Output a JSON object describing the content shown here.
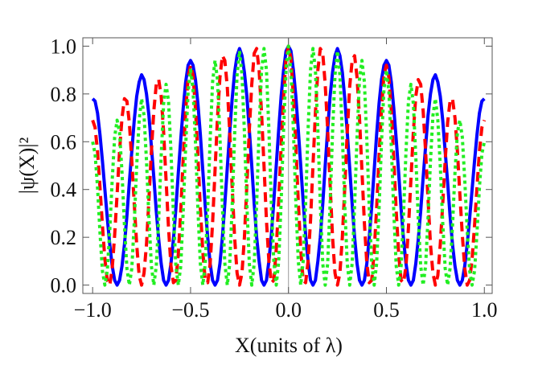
{
  "chart_data": {
    "type": "line",
    "x_label": "X(units of λ)",
    "y_label": "|ψ(X)|²",
    "xlim": [
      -1.05,
      1.04
    ],
    "ylim": [
      -0.035,
      1.035
    ],
    "xticks": [
      {
        "value": -1,
        "label": "−1.0"
      },
      {
        "value": -0.5,
        "label": "−0.5"
      },
      {
        "value": 0,
        "label": "0.0"
      },
      {
        "value": 0.5,
        "label": "0.5"
      },
      {
        "value": 1,
        "label": "1.0"
      }
    ],
    "yticks": [
      {
        "value": 0,
        "label": "0.0"
      },
      {
        "value": 0.2,
        "label": "0.2"
      },
      {
        "value": 0.4,
        "label": "0.4"
      },
      {
        "value": 0.6,
        "label": "0.6"
      },
      {
        "value": 0.8,
        "label": "0.8"
      },
      {
        "value": 1,
        "label": "1.0"
      }
    ],
    "x": [
      -1,
      -0.9875,
      -0.975,
      -0.9625,
      -0.95,
      -0.9375,
      -0.925,
      -0.9125,
      -0.9,
      -0.8875,
      -0.875,
      -0.8625,
      -0.85,
      -0.8375,
      -0.825,
      -0.8125,
      -0.8,
      -0.7875,
      -0.775,
      -0.7625,
      -0.75,
      -0.7375,
      -0.725,
      -0.7125,
      -0.7,
      -0.6875,
      -0.675,
      -0.6625,
      -0.65,
      -0.6375,
      -0.625,
      -0.6125,
      -0.6,
      -0.5875,
      -0.575,
      -0.5625,
      -0.55,
      -0.5375,
      -0.525,
      -0.5125,
      -0.5,
      -0.4875,
      -0.475,
      -0.4625,
      -0.45,
      -0.4375,
      -0.425,
      -0.4125,
      -0.4,
      -0.3875,
      -0.375,
      -0.3625,
      -0.35,
      -0.3375,
      -0.325,
      -0.3125,
      -0.3,
      -0.2875,
      -0.275,
      -0.2625,
      -0.25,
      -0.2375,
      -0.225,
      -0.2125,
      -0.2,
      -0.1875,
      -0.175,
      -0.1625,
      -0.15,
      -0.1375,
      -0.125,
      -0.1125,
      -0.1,
      -0.0875,
      -0.075,
      -0.0625,
      -0.05,
      -0.0375,
      -0.025,
      -0.0125,
      0,
      0.0125,
      0.025,
      0.0375,
      0.05,
      0.0625,
      0.075,
      0.0875,
      0.1,
      0.1125,
      0.125,
      0.1375,
      0.15,
      0.1625,
      0.175,
      0.1875,
      0.2,
      0.2125,
      0.225,
      0.2375,
      0.25,
      0.2625,
      0.275,
      0.2875,
      0.3,
      0.3125,
      0.325,
      0.3375,
      0.35,
      0.3625,
      0.375,
      0.3875,
      0.4,
      0.4125,
      0.425,
      0.4375,
      0.45,
      0.4625,
      0.475,
      0.4875,
      0.5,
      0.5125,
      0.525,
      0.5375,
      0.55,
      0.5625,
      0.575,
      0.5875,
      0.6,
      0.6125,
      0.625,
      0.6375,
      0.65,
      0.6625,
      0.675,
      0.6875,
      0.7,
      0.7125,
      0.725,
      0.7375,
      0.75,
      0.7625,
      0.775,
      0.7875,
      0.8,
      0.8125,
      0.825,
      0.8375,
      0.85,
      0.8625,
      0.875,
      0.8875,
      0.9,
      0.9125,
      0.925,
      0.9375,
      0.95,
      0.9625,
      0.975,
      0.9875,
      1
    ],
    "series": [
      {
        "color": "#0000ff",
        "style": "solid",
        "values": [
          0.78,
          0.77,
          0.72,
          0.63,
          0.52,
          0.4,
          0.28,
          0.17,
          0.08,
          0.02,
          0,
          0.02,
          0.08,
          0.17,
          0.29,
          0.43,
          0.56,
          0.69,
          0.79,
          0.85,
          0.88,
          0.86,
          0.8,
          0.71,
          0.58,
          0.45,
          0.31,
          0.19,
          0.09,
          0.02,
          0,
          0.02,
          0.09,
          0.19,
          0.32,
          0.47,
          0.61,
          0.74,
          0.85,
          0.92,
          0.94,
          0.92,
          0.86,
          0.76,
          0.63,
          0.48,
          0.33,
          0.2,
          0.09,
          0.02,
          0,
          0.02,
          0.09,
          0.2,
          0.34,
          0.49,
          0.64,
          0.78,
          0.89,
          0.96,
          0.99,
          0.96,
          0.89,
          0.79,
          0.65,
          0.5,
          0.34,
          0.2,
          0.1,
          0.02,
          0,
          0.02,
          0.1,
          0.21,
          0.35,
          0.5,
          0.65,
          0.79,
          0.9,
          0.98,
          1,
          0.98,
          0.9,
          0.79,
          0.65,
          0.5,
          0.35,
          0.21,
          0.1,
          0.02,
          0,
          0.02,
          0.1,
          0.2,
          0.34,
          0.5,
          0.65,
          0.79,
          0.89,
          0.96,
          0.99,
          0.96,
          0.89,
          0.78,
          0.64,
          0.49,
          0.34,
          0.2,
          0.09,
          0.02,
          0,
          0.02,
          0.09,
          0.2,
          0.33,
          0.48,
          0.63,
          0.76,
          0.86,
          0.92,
          0.94,
          0.92,
          0.85,
          0.74,
          0.61,
          0.47,
          0.32,
          0.19,
          0.09,
          0.02,
          0,
          0.02,
          0.09,
          0.19,
          0.31,
          0.45,
          0.58,
          0.71,
          0.8,
          0.86,
          0.88,
          0.85,
          0.79,
          0.69,
          0.56,
          0.43,
          0.29,
          0.17,
          0.08,
          0.02,
          0,
          0.02,
          0.08,
          0.17,
          0.28,
          0.4,
          0.52,
          0.63,
          0.72,
          0.77,
          0.78
        ]
      },
      {
        "color": "#ff0000",
        "style": "dashed",
        "values": [
          0.69,
          0.66,
          0.56,
          0.41,
          0.25,
          0.11,
          0.02,
          0,
          0.07,
          0.21,
          0.38,
          0.56,
          0.7,
          0.78,
          0.77,
          0.68,
          0.52,
          0.34,
          0.17,
          0.04,
          0,
          0.05,
          0.17,
          0.36,
          0.56,
          0.73,
          0.84,
          0.86,
          0.79,
          0.64,
          0.44,
          0.24,
          0.08,
          0.01,
          0.02,
          0.13,
          0.31,
          0.53,
          0.73,
          0.87,
          0.92,
          0.88,
          0.74,
          0.54,
          0.32,
          0.14,
          0.02,
          0.01,
          0.09,
          0.26,
          0.48,
          0.7,
          0.87,
          0.96,
          0.94,
          0.83,
          0.64,
          0.41,
          0.2,
          0.05,
          0,
          0.05,
          0.2,
          0.42,
          0.65,
          0.84,
          0.97,
          0.99,
          0.9,
          0.72,
          0.5,
          0.27,
          0.1,
          0.01,
          0.02,
          0.15,
          0.35,
          0.58,
          0.79,
          0.95,
          1,
          0.95,
          0.79,
          0.58,
          0.35,
          0.15,
          0.02,
          0.01,
          0.1,
          0.27,
          0.5,
          0.72,
          0.9,
          0.99,
          0.97,
          0.84,
          0.65,
          0.42,
          0.2,
          0.05,
          0,
          0.05,
          0.2,
          0.41,
          0.64,
          0.83,
          0.94,
          0.96,
          0.87,
          0.7,
          0.48,
          0.26,
          0.09,
          0.01,
          0.02,
          0.14,
          0.32,
          0.54,
          0.74,
          0.88,
          0.92,
          0.87,
          0.73,
          0.53,
          0.31,
          0.13,
          0.02,
          0.01,
          0.08,
          0.24,
          0.44,
          0.64,
          0.79,
          0.86,
          0.84,
          0.73,
          0.56,
          0.36,
          0.17,
          0.05,
          0,
          0.04,
          0.17,
          0.34,
          0.52,
          0.68,
          0.77,
          0.78,
          0.7,
          0.56,
          0.38,
          0.21,
          0.07,
          0,
          0.02,
          0.11,
          0.25,
          0.41,
          0.56,
          0.66,
          0.69
        ]
      },
      {
        "color": "#22ee22",
        "style": "dotted",
        "values": [
          0.6,
          0.55,
          0.41,
          0.22,
          0.06,
          0,
          0.06,
          0.23,
          0.44,
          0.62,
          0.69,
          0.64,
          0.47,
          0.25,
          0.07,
          0,
          0.07,
          0.26,
          0.5,
          0.69,
          0.78,
          0.71,
          0.52,
          0.28,
          0.08,
          0,
          0.08,
          0.28,
          0.54,
          0.76,
          0.84,
          0.77,
          0.56,
          0.3,
          0.08,
          0,
          0.08,
          0.31,
          0.58,
          0.81,
          0.9,
          0.82,
          0.6,
          0.32,
          0.09,
          0,
          0.09,
          0.32,
          0.61,
          0.85,
          0.94,
          0.86,
          0.62,
          0.33,
          0.09,
          0,
          0.09,
          0.33,
          0.63,
          0.88,
          0.98,
          0.88,
          0.64,
          0.34,
          0.09,
          0,
          0.09,
          0.34,
          0.65,
          0.9,
          0.99,
          0.9,
          0.65,
          0.34,
          0.1,
          0,
          0.1,
          0.35,
          0.65,
          0.9,
          1,
          0.9,
          0.65,
          0.35,
          0.1,
          0,
          0.1,
          0.34,
          0.65,
          0.9,
          0.99,
          0.9,
          0.65,
          0.34,
          0.09,
          0,
          0.09,
          0.34,
          0.64,
          0.88,
          0.98,
          0.88,
          0.63,
          0.33,
          0.09,
          0,
          0.09,
          0.33,
          0.62,
          0.86,
          0.94,
          0.85,
          0.61,
          0.32,
          0.09,
          0,
          0.09,
          0.32,
          0.6,
          0.82,
          0.9,
          0.81,
          0.58,
          0.31,
          0.08,
          0,
          0.08,
          0.3,
          0.56,
          0.77,
          0.84,
          0.76,
          0.54,
          0.28,
          0.08,
          0,
          0.08,
          0.28,
          0.52,
          0.71,
          0.78,
          0.69,
          0.5,
          0.26,
          0.07,
          0,
          0.07,
          0.25,
          0.47,
          0.64,
          0.69,
          0.62,
          0.44,
          0.23,
          0.06,
          0,
          0.06,
          0.22,
          0.41,
          0.55,
          0.6
        ]
      }
    ]
  }
}
